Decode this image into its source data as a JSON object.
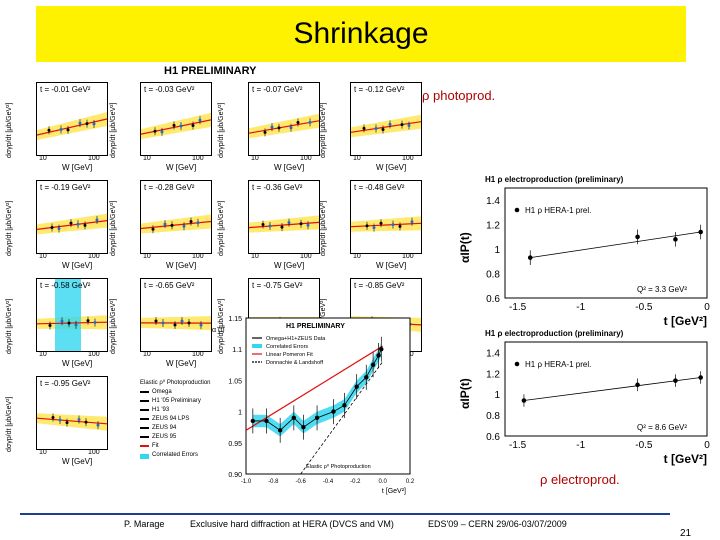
{
  "slide": {
    "title": "Shrinkage",
    "grid_label": "H1 PRELIMINARY",
    "photoprod_tag": "ρ photoprod.",
    "electroprod_tag": "ρ electroprod.",
    "page_number": "21"
  },
  "footer": {
    "author": "P. Marage",
    "talk": "Exclusive hard diffraction at HERA (DVCS and VM)",
    "conference": "EDS'09 – CERN 29/06-03/07/2009"
  },
  "panels": {
    "ylabel": "dσγp/dt [μb/GeV²]",
    "xlabel": "W [GeV]",
    "items": [
      {
        "t": "t = -0.01 GeV²"
      },
      {
        "t": "t = -0.03 GeV²"
      },
      {
        "t": "t = -0.07 GeV²"
      },
      {
        "t": "t = -0.12 GeV²"
      },
      {
        "t": "t = -0.19 GeV²"
      },
      {
        "t": "t = -0.28 GeV²"
      },
      {
        "t": "t = -0.36 GeV²"
      },
      {
        "t": "t = -0.48 GeV²"
      },
      {
        "t": "t = -0.58 GeV²"
      },
      {
        "t": "t = -0.65 GeV²"
      },
      {
        "t": "t = -0.75 GeV²"
      },
      {
        "t": "t = -0.85 GeV²"
      },
      {
        "t": "t = -0.95 GeV²"
      }
    ],
    "tick_10": "10",
    "tick_100": "100"
  },
  "legend": {
    "title": "Elastic ρ⁰ Photoproduction",
    "entries": [
      "Omega",
      "H1 '05 Preliminary",
      "H1 '93",
      "ZEUS 94 LPS",
      "ZEUS 94",
      "ZEUS 95",
      "Fit",
      "Correlated Errors"
    ]
  },
  "chart_data": [
    {
      "type": "line",
      "title": "H1 PRELIMINARY",
      "xlabel": "t [GeV²]",
      "ylabel": "α (t)",
      "xlim": [
        -1.0,
        0.2
      ],
      "ylim": [
        0.9,
        1.15
      ],
      "yticks": [
        "1.15",
        "1.1",
        "1.05",
        "1",
        "0.95",
        "0.90"
      ],
      "xticks": [
        "-1.0",
        "-0.8",
        "-0.6",
        "-0.4",
        "-0.2",
        "0.0",
        "0.2"
      ],
      "legend": [
        "Omega+H1+ZEUS Data",
        "Correlated Errors",
        "Linear Pomeron Fit",
        "Donnachie & Landshoff"
      ],
      "annotation": "Elastic ρ⁰ Photoproduction",
      "series": [
        {
          "name": "Omega+H1+ZEUS Data",
          "x": [
            -0.95,
            -0.85,
            -0.75,
            -0.65,
            -0.58,
            -0.48,
            -0.36,
            -0.28,
            -0.19,
            -0.12,
            -0.07,
            -0.03,
            -0.01
          ],
          "y": [
            0.985,
            0.985,
            0.97,
            0.99,
            0.975,
            0.99,
            1.0,
            1.01,
            1.04,
            1.055,
            1.075,
            1.09,
            1.1
          ]
        }
      ]
    },
    {
      "type": "scatter",
      "title": "H1 ρ electroproduction (preliminary)",
      "xlabel": "t [GeV²]",
      "ylabel": "αIP(t)",
      "xlim": [
        -1.6,
        0.0
      ],
      "ylim": [
        0.6,
        1.5
      ],
      "yticks": [
        "1.4",
        "1.2",
        "1",
        "0.8",
        "0.6"
      ],
      "xticks": [
        "-1.5",
        "-1",
        "-0.5",
        "0"
      ],
      "legend": [
        "H1 ρ HERA-1 prel."
      ],
      "annotation": "Q² = 3.3 GeV²",
      "series": [
        {
          "name": "H1 ρ HERA-1 prel.",
          "x": [
            -1.4,
            -0.55,
            -0.25,
            -0.05
          ],
          "y": [
            0.93,
            1.1,
            1.08,
            1.14
          ]
        }
      ]
    },
    {
      "type": "scatter",
      "title": "H1 ρ electroproduction (preliminary)",
      "xlabel": "t [GeV²]",
      "ylabel": "αIP(t)",
      "xlim": [
        -1.6,
        0.0
      ],
      "ylim": [
        0.6,
        1.5
      ],
      "yticks": [
        "1.4",
        "1.2",
        "1",
        "0.8",
        "0.6"
      ],
      "xticks": [
        "-1.5",
        "-1",
        "-0.5",
        "0"
      ],
      "legend": [
        "H1 ρ HERA-1 prel."
      ],
      "annotation": "Q² = 8.6 GeV²",
      "series": [
        {
          "name": "H1 ρ HERA-1 prel.",
          "x": [
            -1.45,
            -0.55,
            -0.25,
            -0.05
          ],
          "y": [
            0.94,
            1.09,
            1.13,
            1.16
          ]
        }
      ]
    }
  ]
}
